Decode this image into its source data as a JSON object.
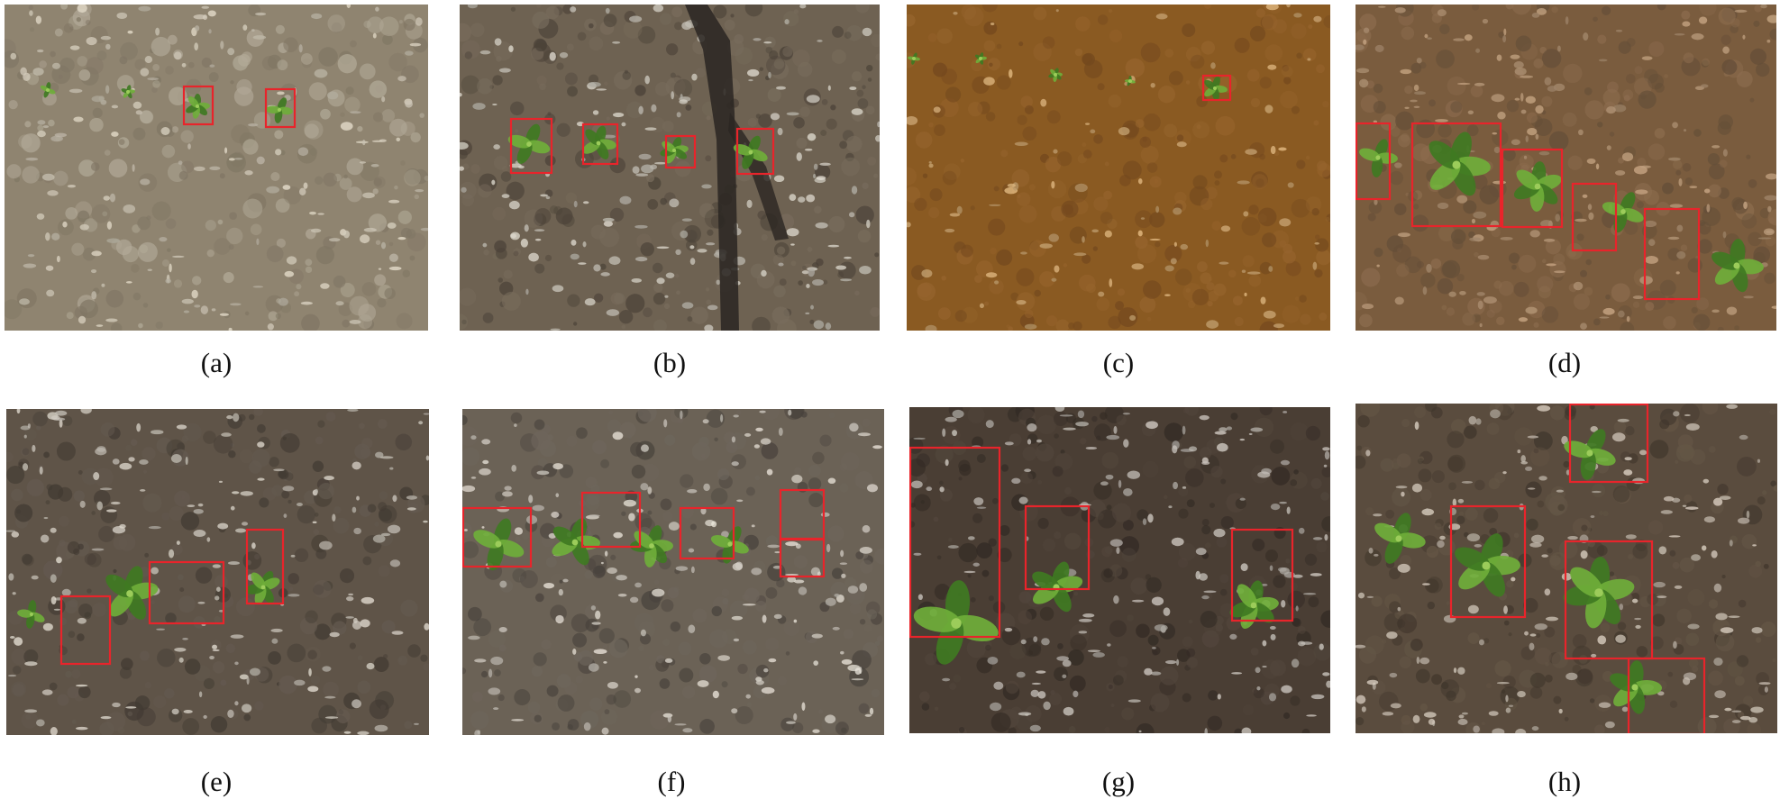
{
  "colors": {
    "box": "#e8242b",
    "leaf": "#6fae3a",
    "leaf_dark": "#3f7a22",
    "soil_a": "#8f8470",
    "soil_b": "#6e6252",
    "soil_c": "#8a5a22",
    "soil_d": "#7a5c3e",
    "soil_e": "#5f5448",
    "soil_f": "#6b6256",
    "soil_g": "#4a3e34",
    "soil_h": "#5a4c3e"
  },
  "panels": [
    {
      "caption": "(a)",
      "soil": "soil_a",
      "plants": 4,
      "boxes": 2
    },
    {
      "caption": "(b)",
      "soil": "soil_b",
      "plants": 4,
      "boxes": 4
    },
    {
      "caption": "(c)",
      "soil": "soil_c",
      "plants": 5,
      "boxes": 1
    },
    {
      "caption": "(d)",
      "soil": "soil_d",
      "plants": 5,
      "boxes": 5
    },
    {
      "caption": "(e)",
      "soil": "soil_e",
      "plants": 3,
      "boxes": 3
    },
    {
      "caption": "(f)",
      "soil": "soil_f",
      "plants": 4,
      "boxes": 5
    },
    {
      "caption": "(g)",
      "soil": "soil_g",
      "plants": 3,
      "boxes": 3
    },
    {
      "caption": "(h)",
      "soil": "soil_h",
      "plants": 5,
      "boxes": 4
    }
  ]
}
